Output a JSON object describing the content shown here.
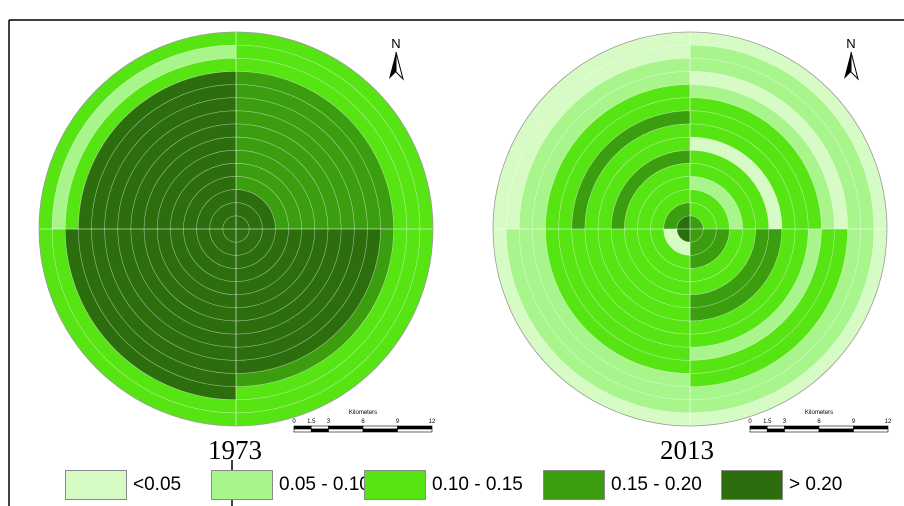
{
  "maps": [
    {
      "year": "1973",
      "north_label": "N",
      "rings": 15,
      "quadrant_classes_outer_to_inner": {
        "NE": [
          "0.10 - 0.15",
          "0.10 - 0.15",
          "0.10 - 0.15",
          "0.15 - 0.20",
          "0.15 - 0.20",
          "0.15 - 0.20",
          "0.15 - 0.20",
          "0.15 - 0.20",
          "0.15 - 0.20",
          "0.15 - 0.20",
          "0.15 - 0.20",
          "0.15 - 0.20",
          "> 0.20",
          "> 0.20",
          "> 0.20"
        ],
        "NW": [
          "0.10 - 0.15",
          "0.05 - 0.10",
          "0.10 - 0.15",
          "> 0.20",
          "> 0.20",
          "> 0.20",
          "> 0.20",
          "> 0.20",
          "> 0.20",
          "> 0.20",
          "> 0.20",
          "> 0.20",
          "> 0.20",
          "> 0.20",
          "> 0.20"
        ],
        "SW": [
          "0.10 - 0.15",
          "0.10 - 0.15",
          "> 0.20",
          "> 0.20",
          "> 0.20",
          "> 0.20",
          "> 0.20",
          "> 0.20",
          "> 0.20",
          "> 0.20",
          "> 0.20",
          "> 0.20",
          "> 0.20",
          "> 0.20",
          "> 0.20"
        ],
        "SE": [
          "0.10 - 0.15",
          "0.10 - 0.15",
          "0.10 - 0.15",
          "0.15 - 0.20",
          "> 0.20",
          "> 0.20",
          "> 0.20",
          "> 0.20",
          "> 0.20",
          "> 0.20",
          "> 0.20",
          "> 0.20",
          "> 0.20",
          "> 0.20",
          "> 0.20"
        ]
      },
      "scale_bar": {
        "unit_label": "Kilometers",
        "ticks": [
          "0",
          "1.5",
          "3",
          "6",
          "9",
          "12"
        ]
      }
    },
    {
      "year": "2013",
      "north_label": "N",
      "rings": 15,
      "quadrant_classes_outer_to_inner": {
        "NE": [
          "<0.05",
          "0.05 - 0.10",
          "0.05 - 0.10",
          "<0.05",
          "0.05 - 0.10",
          "0.10 - 0.15",
          "0.10 - 0.15",
          "0.10 - 0.15",
          "<0.05",
          "0.10 - 0.15",
          "0.10 - 0.15",
          "0.05 - 0.10",
          "0.10 - 0.15",
          "0.10 - 0.15",
          "0.15 - 0.20"
        ],
        "NW": [
          "<0.05",
          "<0.05",
          "0.05 - 0.10",
          "0.05 - 0.10",
          "0.10 - 0.15",
          "0.10 - 0.15",
          "0.15 - 0.20",
          "0.10 - 0.15",
          "0.10 - 0.15",
          "0.15 - 0.20",
          "0.10 - 0.15",
          "0.10 - 0.15",
          "0.10 - 0.15",
          "0.15 - 0.20",
          "> 0.20"
        ],
        "SW": [
          "<0.05",
          "0.05 - 0.10",
          "0.05 - 0.10",
          "0.05 - 0.10",
          "0.10 - 0.15",
          "0.10 - 0.15",
          "0.10 - 0.15",
          "0.10 - 0.15",
          "0.10 - 0.15",
          "0.10 - 0.15",
          "0.10 - 0.15",
          "0.10 - 0.15",
          "0.10 - 0.15",
          "<0.05",
          "> 0.20"
        ],
        "SE": [
          "<0.05",
          "0.05 - 0.10",
          "0.05 - 0.10",
          "0.10 - 0.15",
          "0.10 - 0.15",
          "0.05 - 0.10",
          "0.10 - 0.15",
          "0.10 - 0.15",
          "0.15 - 0.20",
          "0.15 - 0.20",
          "0.10 - 0.15",
          "0.10 - 0.15",
          "0.15 - 0.20",
          "0.15 - 0.20",
          "0.15 - 0.20"
        ]
      },
      "scale_bar": {
        "unit_label": "Kilometers",
        "ticks": [
          "0",
          "1.5",
          "3",
          "6",
          "9",
          "12"
        ]
      }
    }
  ],
  "legend": [
    {
      "label": "<0.05",
      "color": "#d7fbc4"
    },
    {
      "label": "0.05 - 0.10",
      "color": "#a8f58c"
    },
    {
      "label": "0.10 - 0.15",
      "color": "#56e412"
    },
    {
      "label": "0.15 - 0.20",
      "color": "#3b9e0f"
    },
    {
      "label": "> 0.20",
      "color": "#2c6e0d"
    }
  ]
}
